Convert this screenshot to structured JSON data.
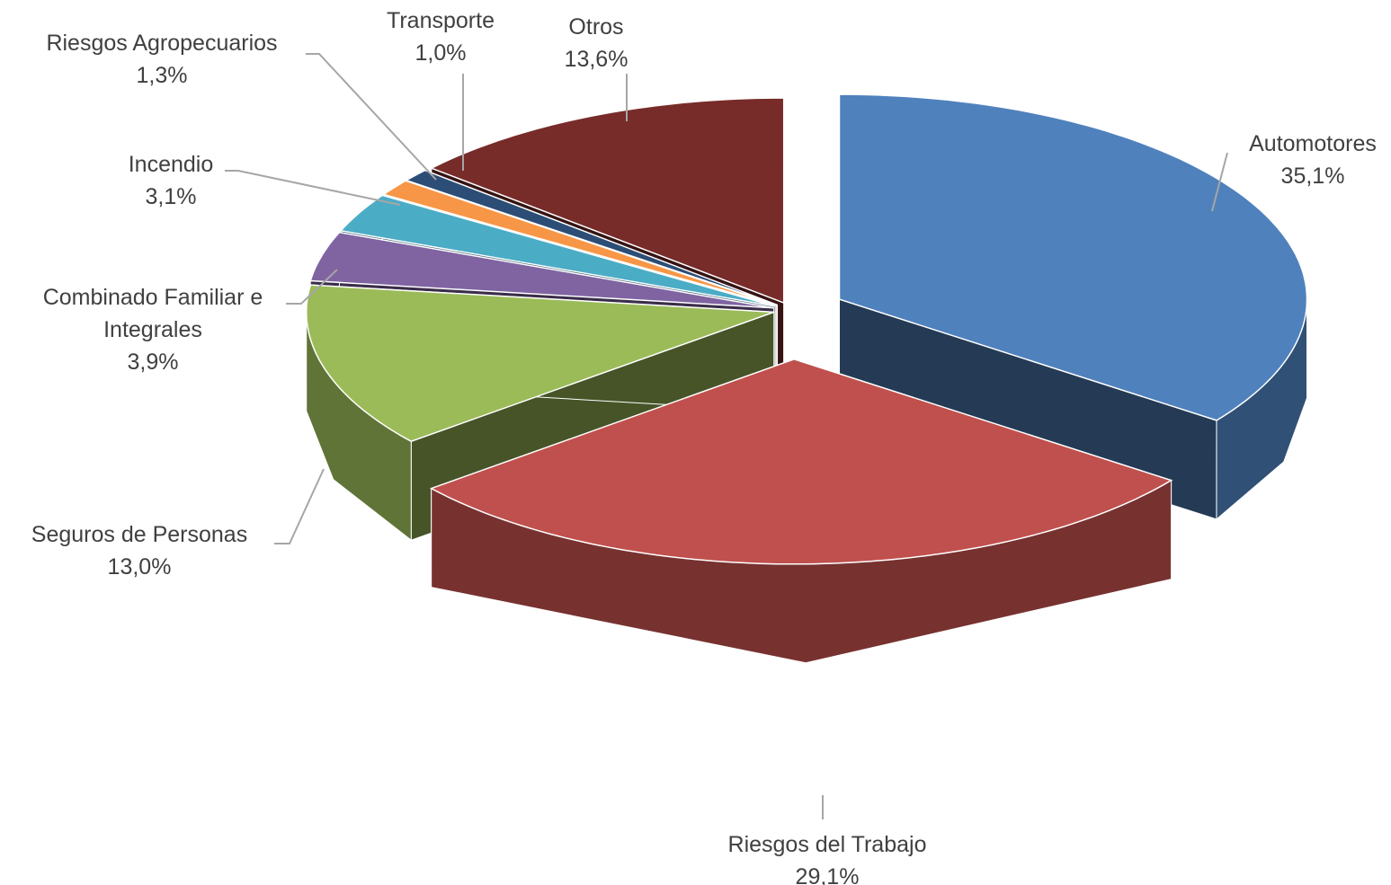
{
  "chart_data": {
    "type": "pie3d",
    "categories": [
      "Automotores",
      "Riesgos del Trabajo",
      "Seguros de Personas",
      "Combinado Familiar e Integrales",
      "Incendio",
      "Riesgos Agropecuarios",
      "Transporte",
      "Otros"
    ],
    "values": [
      35.1,
      29.1,
      13.0,
      3.9,
      3.1,
      1.3,
      1.0,
      13.6
    ],
    "value_labels": [
      "35,1%",
      "29,1%",
      "13,0%",
      "3,9%",
      "3,1%",
      "1,3%",
      "1,0%",
      "13,6%"
    ],
    "colors": [
      "#4f81bd",
      "#c0504d",
      "#9bbb59",
      "#8064a2",
      "#4bacc6",
      "#f79646",
      "#2c4d75",
      "#772c2a"
    ]
  }
}
